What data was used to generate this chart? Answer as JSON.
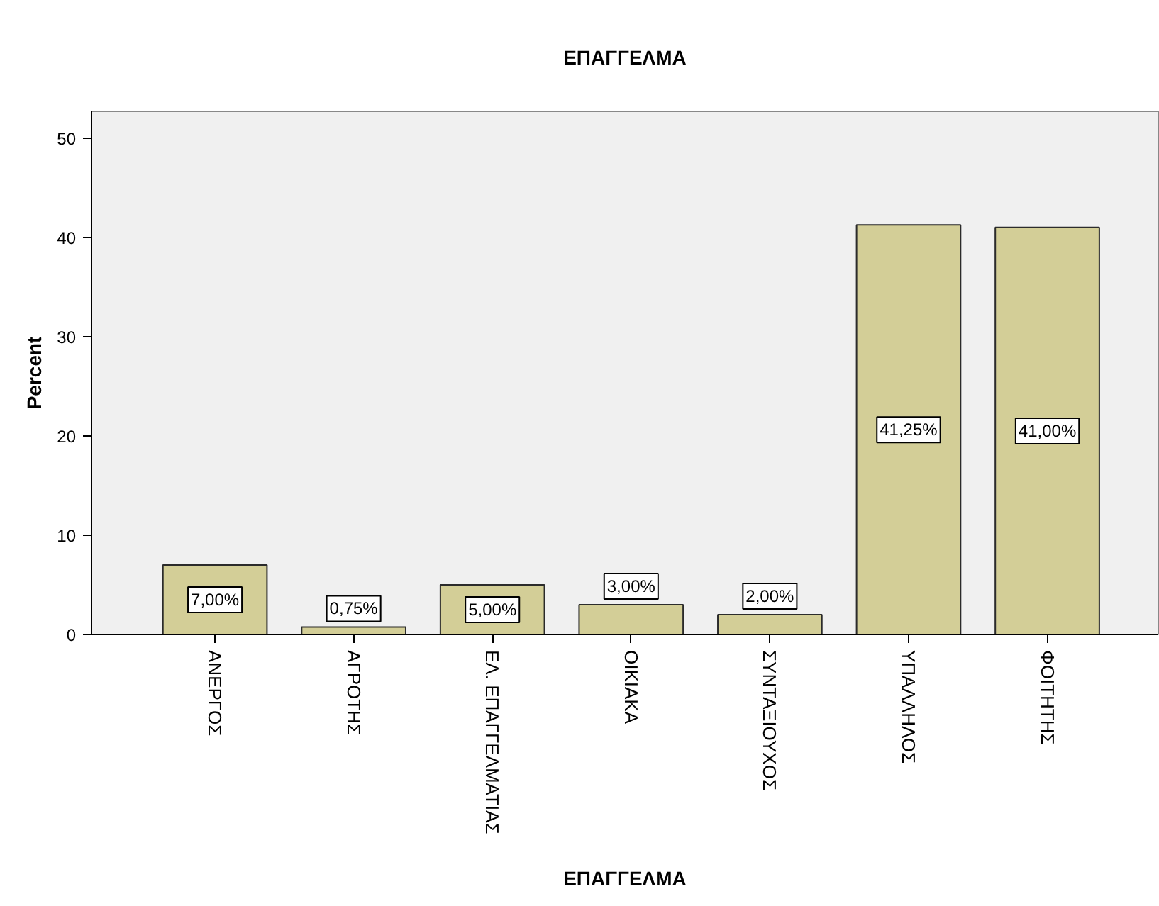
{
  "chart_data": {
    "type": "bar",
    "title": "ΕΠΑΓΓΕΛΜΑ",
    "xlabel": "ΕΠΑΓΓΕΛΜΑ",
    "ylabel": "Percent",
    "categories": [
      "ΑΝΕΡΓΟΣ",
      "ΑΓΡΟΤΗΣ",
      "ΕΛ. ΕΠΑΓΓΕΛΜΑΤΙΑΣ",
      "ΟΙΚΙΑΚΑ",
      "ΣΥΝΤΑΞΙΟΥΧΟΣ",
      "ΥΠΑΛΛΗΛΟΣ",
      "ΦΟΙΤΗΤΗΣ"
    ],
    "values": [
      7.0,
      0.75,
      5.0,
      3.0,
      2.0,
      41.25,
      41.0
    ],
    "value_labels": [
      "7,00%",
      "0,75%",
      "5,00%",
      "3,00%",
      "2,00%",
      "41,25%",
      "41,00%"
    ],
    "color": "#d3ce97",
    "ylim": [
      0,
      52.7
    ],
    "yticks": [
      0,
      10,
      20,
      30,
      40,
      50
    ]
  }
}
